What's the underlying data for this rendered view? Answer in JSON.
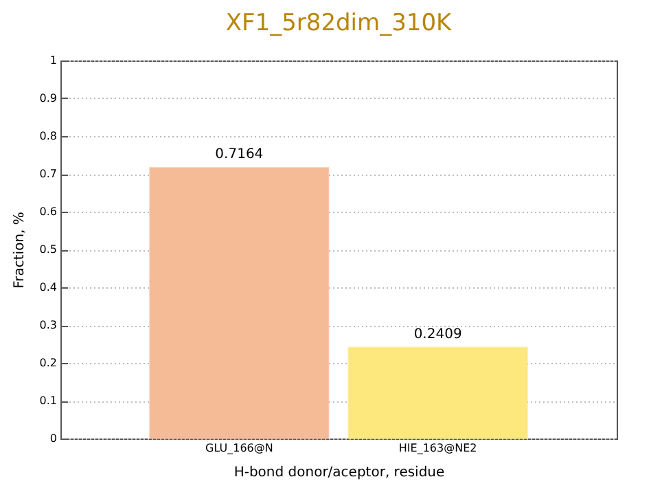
{
  "chart_data": {
    "type": "bar",
    "title": "XF1_5r82dim_310K",
    "xlabel": "H-bond donor/aceptor, residue",
    "ylabel": "Fraction, %",
    "categories": [
      "GLU_166@N",
      "HIE_163@NE2"
    ],
    "values": [
      0.7164,
      0.2409
    ],
    "colors": [
      "#f5bb97",
      "#fde87d"
    ],
    "ylim": [
      0,
      1
    ],
    "yticks": [
      0,
      0.1,
      0.2,
      0.3,
      0.4,
      0.5,
      0.6,
      0.7,
      0.8,
      0.9,
      1
    ],
    "grid": "y",
    "data_labels": true
  }
}
